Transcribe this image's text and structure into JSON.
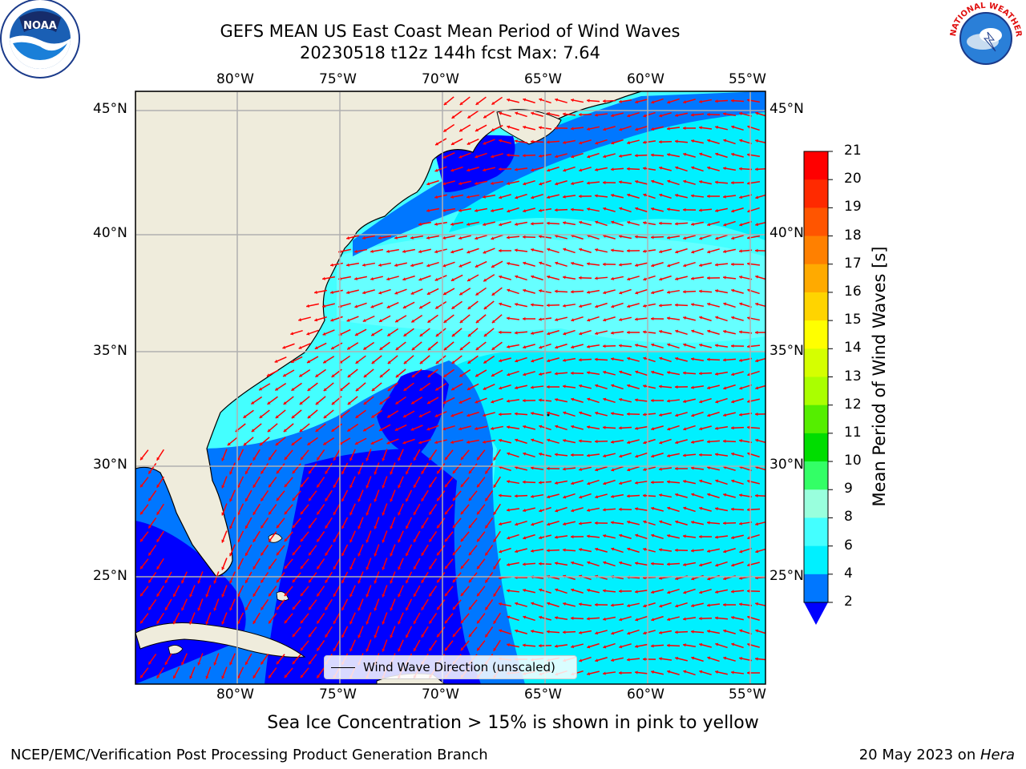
{
  "header": {
    "title_line1": "GEFS MEAN US East Coast Mean Period of Wind Waves",
    "title_line2": "20230518 t12z 144h fcst   Max: 7.64"
  },
  "logos": {
    "left": "NOAA",
    "right": "NATIONAL WEATHER SERVICE"
  },
  "map": {
    "lon_ticks": [
      "80°W",
      "75°W",
      "70°W",
      "65°W",
      "60°W",
      "55°W"
    ],
    "lat_ticks": [
      "45°N",
      "40°N",
      "35°N",
      "30°N",
      "25°N"
    ],
    "land_color": "#efecdc",
    "arrow_color": "#ff0000",
    "grid_color": "#b0b0b0",
    "legend_label": "Wind Wave Direction (unscaled)"
  },
  "colorbar": {
    "label": "Mean Period of Wind Waves [s]",
    "ticks": [
      "21",
      "20",
      "19",
      "18",
      "17",
      "16",
      "15",
      "14",
      "13",
      "12",
      "11",
      "10",
      "9",
      "8",
      "6",
      "4",
      "2"
    ],
    "colors": [
      "#ff0000",
      "#ff2a00",
      "#ff5500",
      "#ff8000",
      "#ffaa00",
      "#ffd400",
      "#ffff00",
      "#d5ff00",
      "#aaff00",
      "#55ee00",
      "#00dd00",
      "#33ff66",
      "#99ffdd",
      "#44ffff",
      "#00f0ff",
      "#0077ff"
    ],
    "underflow_color": "#0000ff"
  },
  "footer": {
    "note": "Sea Ice Concentration > 15% is shown in pink to yellow",
    "left": "NCEP/EMC/Verification Post Processing Product Generation Branch",
    "right_prefix": "20 May 2023 on ",
    "right_host": "Hera"
  }
}
